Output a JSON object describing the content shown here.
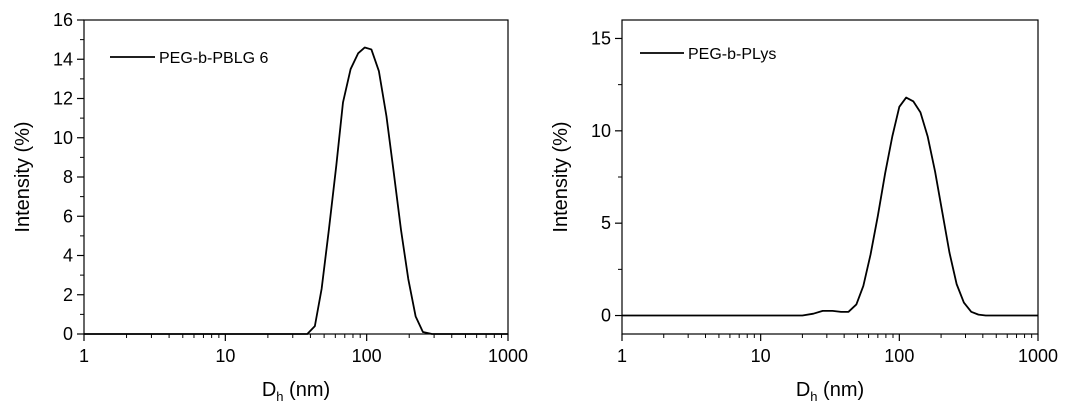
{
  "chart_data": [
    {
      "type": "line",
      "xlabel": {
        "main": "D",
        "sub": "h",
        "unit": "(nm)"
      },
      "ylabel": "Intensity (%)",
      "xscale": "log",
      "xlim": [
        1,
        1000
      ],
      "ylim": [
        0,
        16
      ],
      "xticks": [
        1,
        10,
        100,
        1000
      ],
      "xtick_labels": [
        "1",
        "10",
        "100",
        "1000"
      ],
      "yticks": [
        0,
        2,
        4,
        6,
        8,
        10,
        12,
        14,
        16
      ],
      "ytick_labels": [
        "0",
        "2",
        "4",
        "6",
        "8",
        "10",
        "12",
        "14",
        "16"
      ],
      "grid": false,
      "legend": "top-left",
      "series": [
        {
          "name": "PEG-b-PBLG 6",
          "x": [
            1,
            38,
            43,
            48,
            54,
            61,
            68,
            77,
            87,
            97,
            108,
            122,
            138,
            155,
            175,
            197,
            222,
            250,
            290,
            1000
          ],
          "y": [
            0,
            0,
            0.4,
            2.3,
            5.3,
            8.6,
            11.8,
            13.5,
            14.3,
            14.6,
            14.5,
            13.4,
            11.1,
            8.3,
            5.3,
            2.8,
            0.9,
            0.1,
            0,
            0
          ]
        }
      ]
    },
    {
      "type": "line",
      "xlabel": {
        "main": "D",
        "sub": "h",
        "unit": "(nm)"
      },
      "ylabel": "Intensity (%)",
      "xscale": "log",
      "xlim": [
        1,
        1000
      ],
      "ylim": [
        -1,
        16
      ],
      "xticks": [
        1,
        10,
        100,
        1000
      ],
      "xtick_labels": [
        "1",
        "10",
        "100",
        "1000"
      ],
      "yticks": [
        0,
        5,
        10,
        15
      ],
      "ytick_labels": [
        "0",
        "5",
        "10",
        "15"
      ],
      "grid": false,
      "legend": "top-left",
      "series": [
        {
          "name": "PEG-b-PLys",
          "x": [
            1,
            20,
            24,
            28,
            33,
            38,
            43,
            49,
            55,
            62,
            70,
            79,
            89,
            100,
            112,
            126,
            142,
            160,
            181,
            204,
            230,
            259,
            292,
            330,
            372,
            420,
            473,
            533,
            600,
            700,
            1000
          ],
          "y": [
            0,
            0,
            0.1,
            0.25,
            0.25,
            0.2,
            0.2,
            0.6,
            1.6,
            3.3,
            5.4,
            7.7,
            9.7,
            11.3,
            11.8,
            11.6,
            11.0,
            9.7,
            7.8,
            5.6,
            3.4,
            1.7,
            0.7,
            0.2,
            0.05,
            0,
            0,
            0,
            0,
            0,
            0
          ]
        }
      ]
    }
  ]
}
